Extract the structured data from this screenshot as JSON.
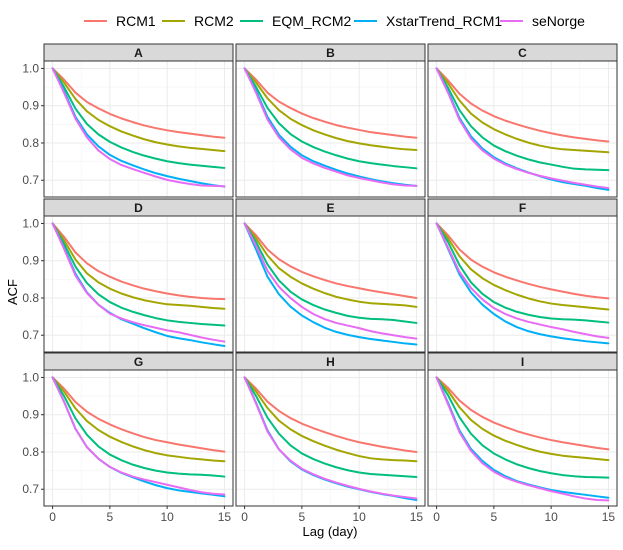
{
  "chart_data": {
    "type": "line",
    "xlabel": "Lag (day)",
    "ylabel": "ACF",
    "xlim": [
      -0.75,
      15.75
    ],
    "ylim": [
      0.655,
      1.02
    ],
    "xticks": [
      0,
      5,
      10,
      15
    ],
    "yticks": [
      0.7,
      0.8,
      0.9,
      1.0
    ],
    "ytick_labels": [
      "0.7",
      "0.8",
      "0.9",
      "1.0"
    ],
    "legend_position": "top",
    "series_meta": [
      {
        "name": "RCM1",
        "color": "#F8766D"
      },
      {
        "name": "RCM2",
        "color": "#A3A500"
      },
      {
        "name": "EQM_RCM2",
        "color": "#00BF7D"
      },
      {
        "name": "XstarTrend_RCM1",
        "color": "#00B0F6"
      },
      {
        "name": "seNorge",
        "color": "#E76BF3"
      }
    ],
    "x": [
      0,
      1,
      2,
      3,
      4,
      5,
      6,
      7,
      8,
      9,
      10,
      11,
      12,
      13,
      14,
      15
    ],
    "panels": [
      {
        "label": "A",
        "series": [
          [
            1,
            0.97,
            0.935,
            0.91,
            0.893,
            0.878,
            0.866,
            0.856,
            0.847,
            0.84,
            0.834,
            0.829,
            0.825,
            0.821,
            0.817,
            0.814
          ],
          [
            1,
            0.962,
            0.918,
            0.885,
            0.862,
            0.845,
            0.831,
            0.82,
            0.81,
            0.802,
            0.796,
            0.791,
            0.787,
            0.784,
            0.781,
            0.778
          ],
          [
            1,
            0.95,
            0.892,
            0.851,
            0.823,
            0.803,
            0.788,
            0.776,
            0.766,
            0.758,
            0.751,
            0.746,
            0.742,
            0.739,
            0.736,
            0.733
          ],
          [
            1,
            0.94,
            0.87,
            0.823,
            0.791,
            0.768,
            0.752,
            0.74,
            0.729,
            0.719,
            0.711,
            0.704,
            0.698,
            0.692,
            0.687,
            0.683
          ],
          [
            1,
            0.935,
            0.865,
            0.815,
            0.78,
            0.757,
            0.741,
            0.73,
            0.72,
            0.71,
            0.701,
            0.695,
            0.69,
            0.686,
            0.685,
            0.684
          ]
        ]
      },
      {
        "label": "B",
        "series": [
          [
            1,
            0.97,
            0.935,
            0.911,
            0.894,
            0.879,
            0.867,
            0.857,
            0.848,
            0.841,
            0.835,
            0.829,
            0.825,
            0.821,
            0.817,
            0.814
          ],
          [
            1,
            0.962,
            0.92,
            0.888,
            0.865,
            0.848,
            0.834,
            0.823,
            0.813,
            0.805,
            0.799,
            0.794,
            0.79,
            0.786,
            0.783,
            0.781
          ],
          [
            1,
            0.95,
            0.894,
            0.853,
            0.824,
            0.804,
            0.789,
            0.777,
            0.767,
            0.758,
            0.751,
            0.746,
            0.742,
            0.738,
            0.735,
            0.732
          ],
          [
            1,
            0.94,
            0.87,
            0.822,
            0.79,
            0.767,
            0.751,
            0.739,
            0.728,
            0.718,
            0.71,
            0.703,
            0.697,
            0.692,
            0.688,
            0.685
          ],
          [
            1,
            0.935,
            0.863,
            0.815,
            0.783,
            0.76,
            0.745,
            0.733,
            0.723,
            0.713,
            0.706,
            0.7,
            0.694,
            0.689,
            0.686,
            0.685
          ]
        ]
      },
      {
        "label": "C",
        "series": [
          [
            1,
            0.968,
            0.932,
            0.906,
            0.887,
            0.872,
            0.86,
            0.85,
            0.841,
            0.833,
            0.826,
            0.82,
            0.815,
            0.811,
            0.807,
            0.804
          ],
          [
            1,
            0.96,
            0.914,
            0.879,
            0.855,
            0.837,
            0.823,
            0.811,
            0.801,
            0.793,
            0.787,
            0.783,
            0.781,
            0.779,
            0.777,
            0.775
          ],
          [
            1,
            0.948,
            0.888,
            0.845,
            0.815,
            0.793,
            0.778,
            0.766,
            0.756,
            0.748,
            0.742,
            0.736,
            0.731,
            0.729,
            0.728,
            0.727
          ],
          [
            1,
            0.938,
            0.867,
            0.818,
            0.785,
            0.762,
            0.745,
            0.732,
            0.721,
            0.711,
            0.702,
            0.695,
            0.69,
            0.685,
            0.679,
            0.674
          ],
          [
            1,
            0.935,
            0.862,
            0.812,
            0.78,
            0.758,
            0.742,
            0.73,
            0.72,
            0.712,
            0.705,
            0.699,
            0.693,
            0.688,
            0.683,
            0.679
          ]
        ]
      },
      {
        "label": "D",
        "series": [
          [
            1,
            0.964,
            0.922,
            0.893,
            0.872,
            0.857,
            0.844,
            0.834,
            0.825,
            0.818,
            0.812,
            0.807,
            0.803,
            0.8,
            0.798,
            0.797
          ],
          [
            1,
            0.955,
            0.903,
            0.866,
            0.842,
            0.825,
            0.812,
            0.802,
            0.794,
            0.788,
            0.783,
            0.781,
            0.779,
            0.776,
            0.773,
            0.771
          ],
          [
            1,
            0.945,
            0.884,
            0.84,
            0.81,
            0.789,
            0.774,
            0.763,
            0.754,
            0.746,
            0.74,
            0.736,
            0.733,
            0.73,
            0.728,
            0.726
          ],
          [
            1,
            0.935,
            0.865,
            0.815,
            0.782,
            0.76,
            0.743,
            0.731,
            0.719,
            0.708,
            0.698,
            0.692,
            0.687,
            0.681,
            0.676,
            0.671
          ],
          [
            1,
            0.932,
            0.86,
            0.813,
            0.782,
            0.758,
            0.745,
            0.735,
            0.727,
            0.72,
            0.713,
            0.708,
            0.701,
            0.694,
            0.688,
            0.683
          ]
        ]
      },
      {
        "label": "E",
        "series": [
          [
            1,
            0.968,
            0.93,
            0.904,
            0.885,
            0.87,
            0.858,
            0.848,
            0.839,
            0.832,
            0.826,
            0.82,
            0.815,
            0.81,
            0.805,
            0.8
          ],
          [
            1,
            0.96,
            0.914,
            0.88,
            0.857,
            0.839,
            0.825,
            0.813,
            0.803,
            0.796,
            0.79,
            0.786,
            0.784,
            0.782,
            0.78,
            0.776
          ],
          [
            1,
            0.95,
            0.89,
            0.847,
            0.817,
            0.796,
            0.781,
            0.769,
            0.76,
            0.752,
            0.747,
            0.744,
            0.743,
            0.741,
            0.737,
            0.733
          ],
          [
            1,
            0.93,
            0.857,
            0.81,
            0.777,
            0.753,
            0.735,
            0.72,
            0.709,
            0.701,
            0.695,
            0.69,
            0.686,
            0.682,
            0.678,
            0.675
          ],
          [
            1,
            0.94,
            0.873,
            0.83,
            0.8,
            0.776,
            0.757,
            0.743,
            0.733,
            0.726,
            0.719,
            0.711,
            0.705,
            0.7,
            0.695,
            0.691
          ]
        ]
      },
      {
        "label": "F",
        "series": [
          [
            1,
            0.968,
            0.93,
            0.903,
            0.884,
            0.869,
            0.857,
            0.847,
            0.838,
            0.83,
            0.823,
            0.817,
            0.811,
            0.806,
            0.802,
            0.799
          ],
          [
            1,
            0.96,
            0.912,
            0.877,
            0.853,
            0.835,
            0.821,
            0.809,
            0.799,
            0.791,
            0.785,
            0.781,
            0.778,
            0.775,
            0.772,
            0.769
          ],
          [
            1,
            0.95,
            0.888,
            0.842,
            0.811,
            0.789,
            0.774,
            0.763,
            0.755,
            0.749,
            0.745,
            0.743,
            0.742,
            0.74,
            0.737,
            0.734
          ],
          [
            1,
            0.932,
            0.863,
            0.815,
            0.782,
            0.757,
            0.737,
            0.722,
            0.711,
            0.703,
            0.697,
            0.692,
            0.688,
            0.684,
            0.681,
            0.678
          ],
          [
            1,
            0.935,
            0.87,
            0.827,
            0.796,
            0.773,
            0.757,
            0.745,
            0.736,
            0.729,
            0.722,
            0.716,
            0.709,
            0.703,
            0.697,
            0.693
          ]
        ]
      },
      {
        "label": "G",
        "series": [
          [
            1,
            0.97,
            0.934,
            0.908,
            0.889,
            0.874,
            0.861,
            0.85,
            0.84,
            0.832,
            0.826,
            0.82,
            0.815,
            0.81,
            0.805,
            0.801
          ],
          [
            1,
            0.962,
            0.917,
            0.883,
            0.859,
            0.841,
            0.827,
            0.815,
            0.805,
            0.797,
            0.791,
            0.787,
            0.783,
            0.78,
            0.777,
            0.775
          ],
          [
            1,
            0.95,
            0.89,
            0.846,
            0.815,
            0.793,
            0.778,
            0.766,
            0.757,
            0.75,
            0.745,
            0.742,
            0.74,
            0.739,
            0.737,
            0.734
          ],
          [
            1,
            0.935,
            0.862,
            0.813,
            0.782,
            0.76,
            0.744,
            0.732,
            0.721,
            0.711,
            0.703,
            0.697,
            0.693,
            0.689,
            0.685,
            0.681
          ],
          [
            1,
            0.935,
            0.862,
            0.813,
            0.782,
            0.76,
            0.745,
            0.734,
            0.726,
            0.719,
            0.712,
            0.705,
            0.698,
            0.692,
            0.688,
            0.686
          ]
        ]
      },
      {
        "label": "H",
        "series": [
          [
            1,
            0.97,
            0.935,
            0.91,
            0.891,
            0.876,
            0.864,
            0.853,
            0.843,
            0.834,
            0.826,
            0.82,
            0.814,
            0.809,
            0.804,
            0.8
          ],
          [
            1,
            0.962,
            0.918,
            0.884,
            0.861,
            0.843,
            0.829,
            0.817,
            0.806,
            0.797,
            0.789,
            0.783,
            0.78,
            0.778,
            0.777,
            0.775
          ],
          [
            1,
            0.95,
            0.892,
            0.849,
            0.818,
            0.796,
            0.781,
            0.769,
            0.759,
            0.751,
            0.745,
            0.741,
            0.739,
            0.737,
            0.735,
            0.733
          ],
          [
            1,
            0.932,
            0.858,
            0.807,
            0.775,
            0.753,
            0.738,
            0.726,
            0.716,
            0.707,
            0.7,
            0.693,
            0.687,
            0.682,
            0.676,
            0.671
          ],
          [
            1,
            0.93,
            0.855,
            0.807,
            0.777,
            0.755,
            0.74,
            0.728,
            0.718,
            0.709,
            0.701,
            0.694,
            0.688,
            0.683,
            0.679,
            0.675
          ]
        ]
      },
      {
        "label": "I",
        "series": [
          [
            1,
            0.972,
            0.938,
            0.913,
            0.894,
            0.879,
            0.867,
            0.856,
            0.847,
            0.839,
            0.832,
            0.826,
            0.821,
            0.816,
            0.811,
            0.807
          ],
          [
            1,
            0.964,
            0.92,
            0.886,
            0.862,
            0.844,
            0.83,
            0.819,
            0.809,
            0.801,
            0.795,
            0.79,
            0.787,
            0.784,
            0.781,
            0.778
          ],
          [
            1,
            0.952,
            0.893,
            0.849,
            0.818,
            0.796,
            0.78,
            0.767,
            0.757,
            0.749,
            0.743,
            0.738,
            0.735,
            0.733,
            0.732,
            0.731
          ],
          [
            1,
            0.932,
            0.858,
            0.808,
            0.776,
            0.752,
            0.735,
            0.722,
            0.713,
            0.705,
            0.698,
            0.693,
            0.689,
            0.685,
            0.681,
            0.677
          ],
          [
            1,
            0.928,
            0.853,
            0.803,
            0.77,
            0.747,
            0.731,
            0.72,
            0.711,
            0.703,
            0.695,
            0.688,
            0.681,
            0.675,
            0.671,
            0.67
          ]
        ]
      }
    ]
  }
}
